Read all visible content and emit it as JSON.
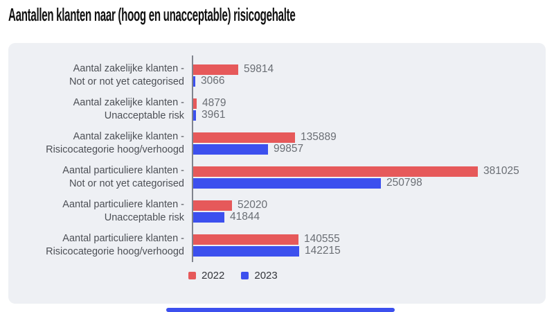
{
  "title": "Aantallen klanten naar (hoog en unacceptable) risicogehalte",
  "chart_data": {
    "type": "bar",
    "orientation": "horizontal",
    "title": "Aantallen klanten naar (hoog en unacceptable) risicogehalte",
    "categories": [
      [
        "Aantal zakelijke klanten -",
        "Not or not yet categorised"
      ],
      [
        "Aantal zakelijke klanten -",
        "Unacceptable risk"
      ],
      [
        "Aantal zakelijke klanten -",
        "Risicocategorie hoog/verhoogd"
      ],
      [
        "Aantal particuliere klanten -",
        "Not or not yet categorised"
      ],
      [
        "Aantal particuliere klanten -",
        "Unacceptable risk"
      ],
      [
        "Aantal particuliere klanten -",
        "Risicocategorie hoog/verhoogd"
      ]
    ],
    "series": [
      {
        "name": "2022",
        "color": "#e6595a",
        "values": [
          59814,
          4879,
          135889,
          381025,
          52020,
          140555
        ]
      },
      {
        "name": "2023",
        "color": "#3c50ee",
        "values": [
          3066,
          3961,
          99857,
          250798,
          41844,
          142215
        ]
      }
    ],
    "value_labels_shown": true,
    "xlim": [
      0,
      381025
    ],
    "grid": false,
    "legend_position": "bottom"
  },
  "colors": {
    "panel_background": "#eef0f4",
    "axis_line": "#80848d",
    "category_label_text": "#4c4f55",
    "value_label_text": "#6a6e74",
    "title_text": "#111111",
    "series_2022": "#e6595a",
    "series_2023": "#3c50ee",
    "home_indicator": "#3c50ee"
  }
}
